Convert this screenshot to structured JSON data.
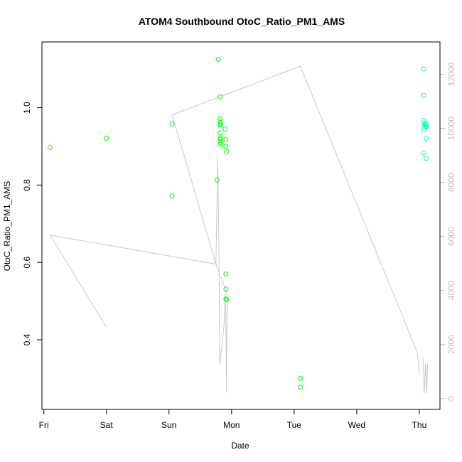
{
  "chart_data": {
    "type": "scatter",
    "title": "ATOM4 Southbound OtoC_Ratio_PM1_AMS",
    "xlabel": "Date",
    "ylabel": "OtoC_Ratio_PM1_AMS",
    "x_ticks": [
      "Fri",
      "Sat",
      "Sun",
      "Mon",
      "Tue",
      "Wed",
      "Thu"
    ],
    "xlim": [
      -0.03,
      6.33
    ],
    "y_ticks": [
      0.4,
      0.6,
      0.8,
      1.0
    ],
    "ylim": [
      0.22,
      1.17
    ],
    "y2_ticks": [
      0,
      2000,
      4000,
      6000,
      8000,
      10000,
      12000
    ],
    "y2lim": [
      -400,
      13200
    ],
    "grid": false,
    "series": [
      {
        "color": "#00ff00",
        "marker": "open-circle",
        "axis": "left",
        "points": [
          {
            "x": 0.1,
            "y": 0.897
          },
          {
            "x": 1.0,
            "y": 0.921
          },
          {
            "x": 2.05,
            "y": 0.958
          },
          {
            "x": 2.05,
            "y": 0.772
          },
          {
            "x": 2.77,
            "y": 0.813
          },
          {
            "x": 2.79,
            "y": 1.125
          },
          {
            "x": 2.82,
            "y": 1.028
          },
          {
            "x": 2.82,
            "y": 0.972
          },
          {
            "x": 2.82,
            "y": 0.962
          },
          {
            "x": 2.82,
            "y": 0.958
          },
          {
            "x": 2.82,
            "y": 0.955
          },
          {
            "x": 2.82,
            "y": 0.935
          },
          {
            "x": 2.82,
            "y": 0.922
          },
          {
            "x": 2.82,
            "y": 0.918
          },
          {
            "x": 2.83,
            "y": 0.91
          },
          {
            "x": 2.83,
            "y": 0.905
          },
          {
            "x": 2.9,
            "y": 0.945
          },
          {
            "x": 2.91,
            "y": 0.918
          },
          {
            "x": 2.91,
            "y": 0.9
          },
          {
            "x": 2.92,
            "y": 0.886
          },
          {
            "x": 2.91,
            "y": 0.57
          },
          {
            "x": 2.91,
            "y": 0.531
          },
          {
            "x": 2.91,
            "y": 0.505
          },
          {
            "x": 2.92,
            "y": 0.504
          },
          {
            "x": 4.1,
            "y": 0.3
          },
          {
            "x": 4.1,
            "y": 0.277
          }
        ]
      },
      {
        "color": "#00ffa0",
        "marker": "open-circle",
        "axis": "left",
        "points": [
          {
            "x": 6.07,
            "y": 1.1
          },
          {
            "x": 6.07,
            "y": 1.032
          },
          {
            "x": 6.07,
            "y": 0.967
          },
          {
            "x": 6.09,
            "y": 0.958
          },
          {
            "x": 6.12,
            "y": 0.958
          },
          {
            "x": 6.08,
            "y": 0.955
          },
          {
            "x": 6.1,
            "y": 0.952
          },
          {
            "x": 6.11,
            "y": 0.95
          },
          {
            "x": 6.07,
            "y": 0.942
          },
          {
            "x": 6.11,
            "y": 0.92
          },
          {
            "x": 6.07,
            "y": 0.883
          },
          {
            "x": 6.11,
            "y": 0.869
          }
        ]
      },
      {
        "color": "#c8c8c8",
        "marker": "line",
        "axis": "right",
        "segments": [
          [
            [
              0.1,
              6050
            ],
            [
              1.0,
              2650
            ]
          ],
          [
            [
              0.1,
              6050
            ],
            [
              2.75,
              4980
            ],
            [
              2.78,
              8950
            ],
            [
              2.8,
              4980
            ],
            [
              2.81,
              1240
            ],
            [
              2.88,
              2700
            ],
            [
              2.9,
              3900
            ],
            [
              2.91,
              2700
            ],
            [
              2.92,
              210
            ],
            [
              2.93,
              3900
            ],
            [
              2.75,
              4980
            ],
            [
              2.05,
              10500
            ],
            [
              4.1,
              12300
            ],
            [
              5.97,
              1700
            ],
            [
              6.0,
              900
            ]
          ],
          [
            [
              6.06,
              1500
            ],
            [
              6.08,
              210
            ],
            [
              6.1,
              1300
            ],
            [
              6.12,
              210
            ],
            [
              6.13,
              1300
            ]
          ]
        ]
      }
    ]
  }
}
